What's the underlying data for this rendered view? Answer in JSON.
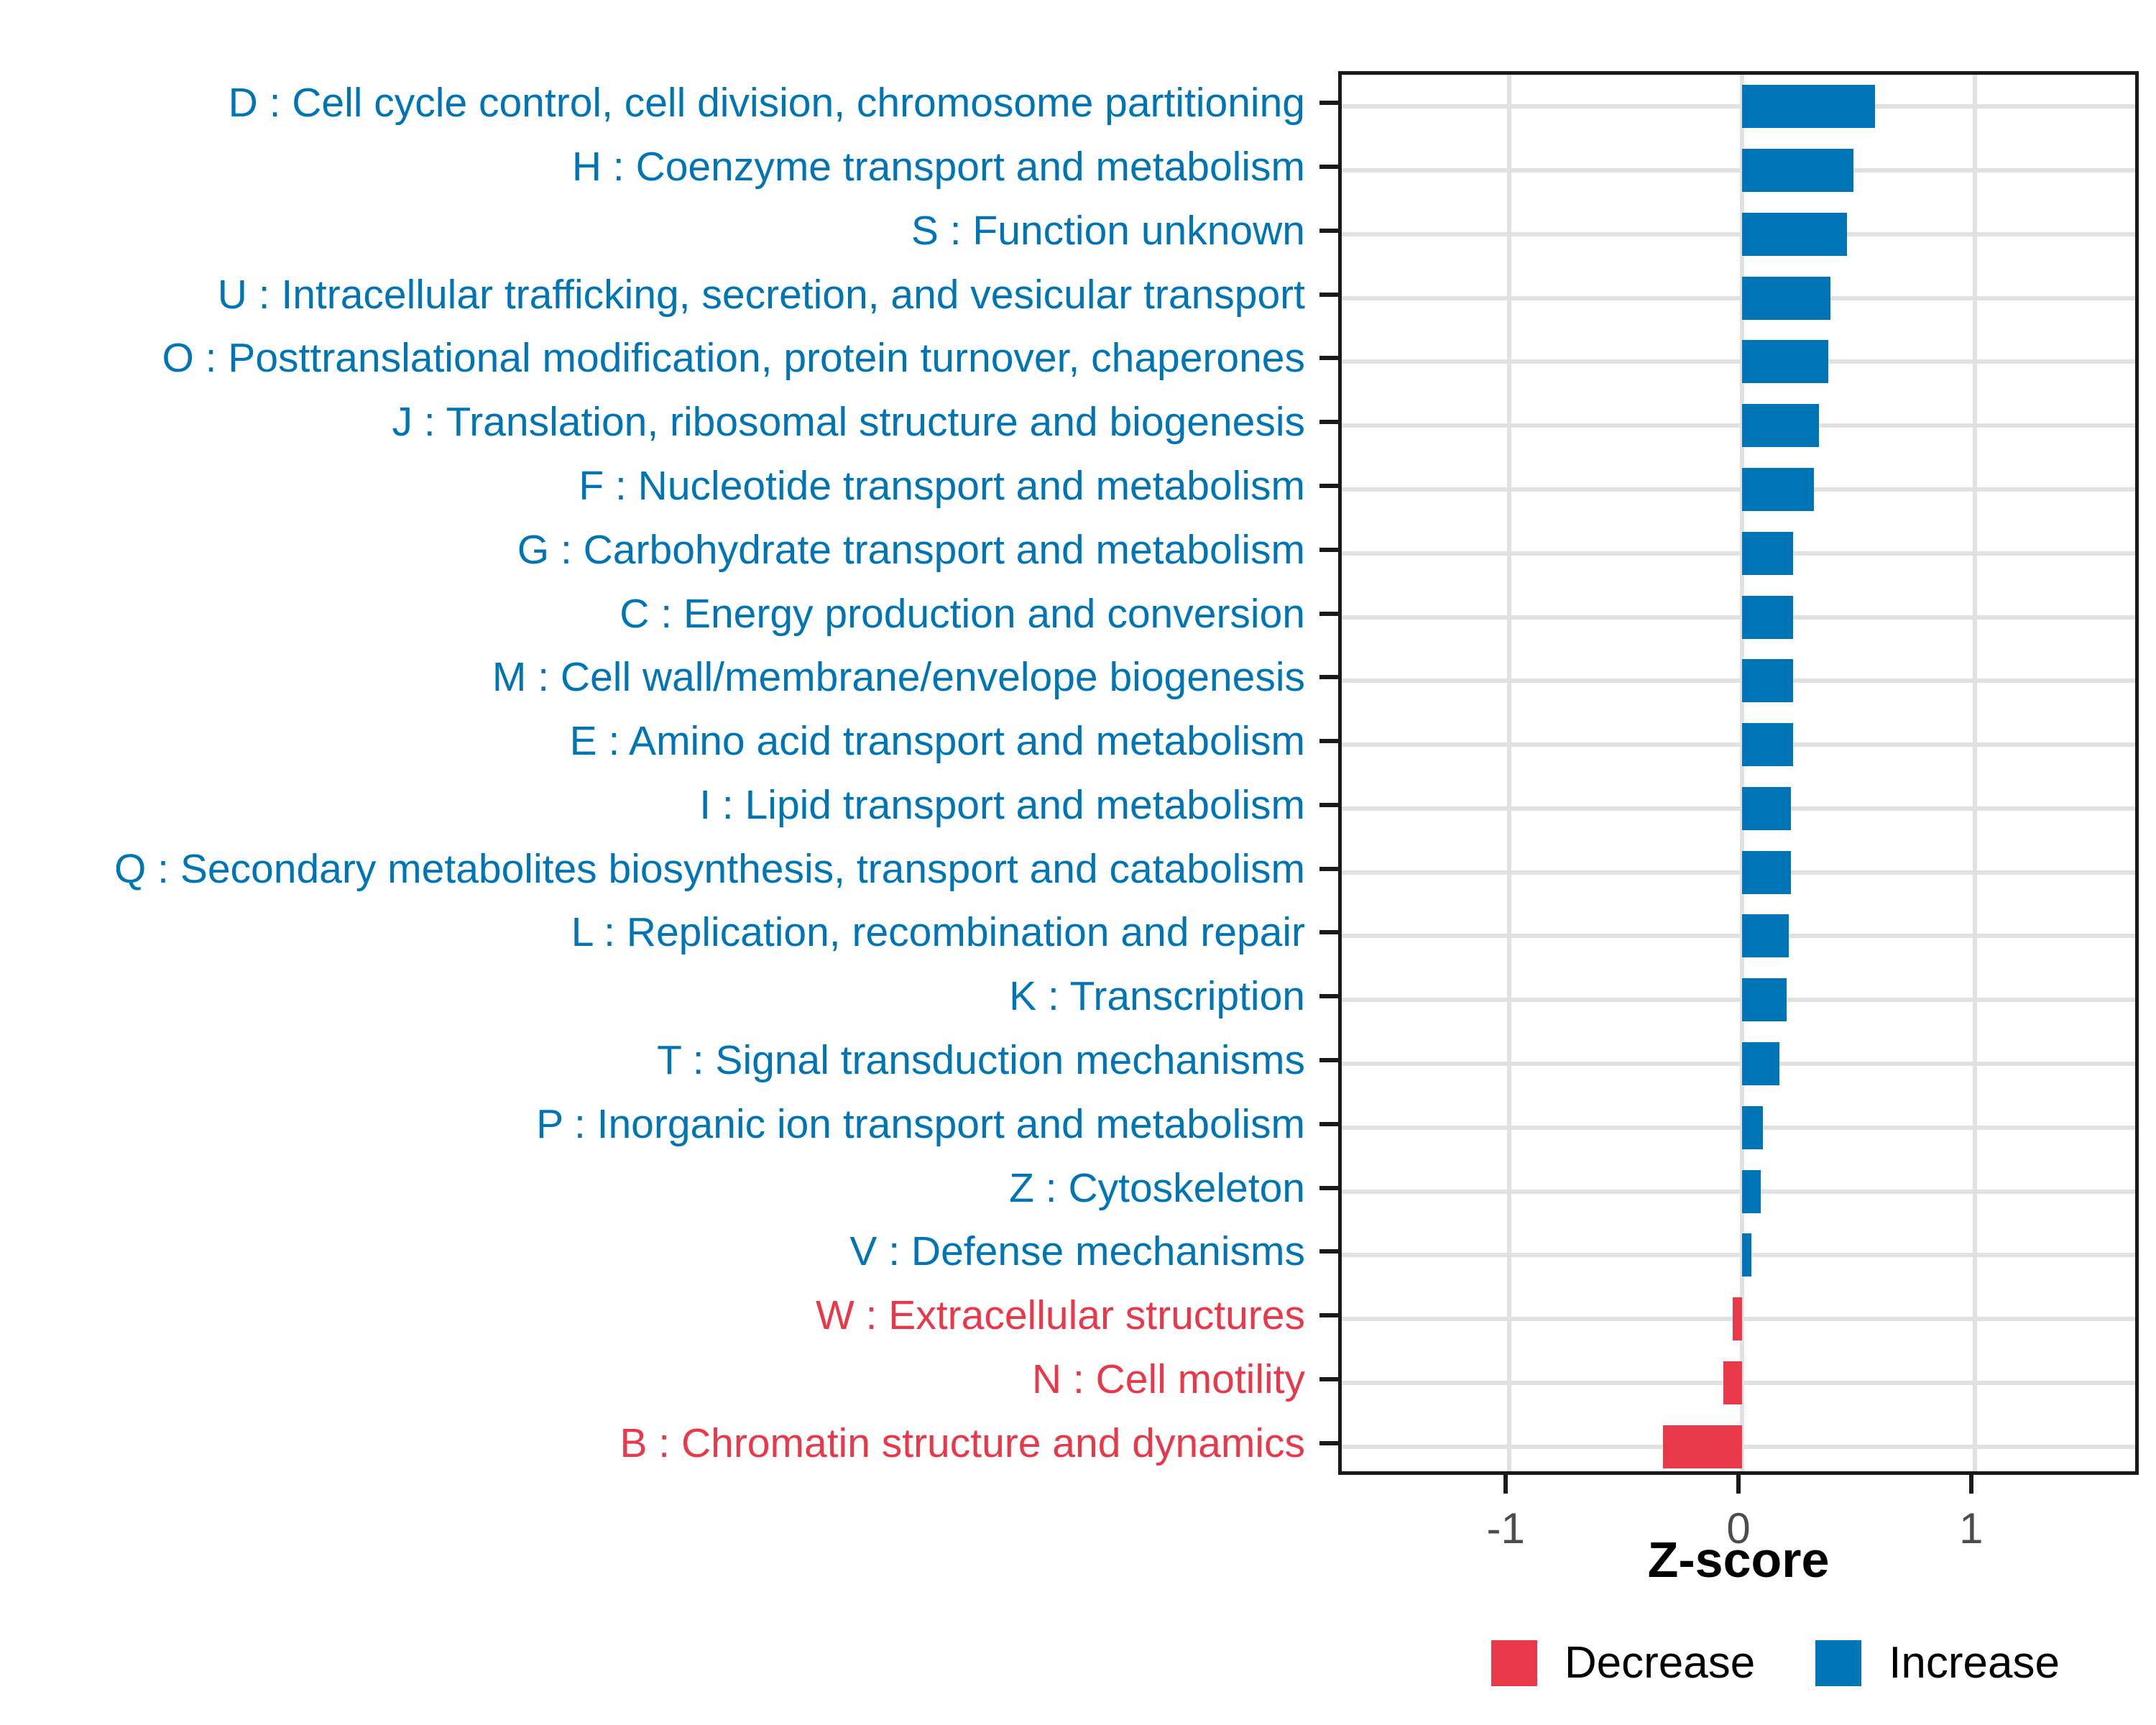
{
  "chart_data": {
    "type": "bar",
    "orientation": "horizontal",
    "title": "",
    "xlabel": "Z-score",
    "ylabel": "",
    "xlim": [
      -1.72,
      1.72
    ],
    "grid": "major-only",
    "x_ticks": [
      {
        "value": -1,
        "label": "-1"
      },
      {
        "value": 0,
        "label": "0"
      },
      {
        "value": 1,
        "label": "1"
      }
    ],
    "legend": {
      "position": "bottom-right",
      "entries": [
        {
          "label": "Decrease",
          "color": "#E8394A"
        },
        {
          "label": "Increase",
          "color": "#0075B6"
        }
      ]
    },
    "categories": [
      {
        "code": "D",
        "label": "D : Cell cycle control, cell division, chromosome partitioning",
        "value": 0.57,
        "direction": "Increase"
      },
      {
        "code": "H",
        "label": "H : Coenzyme transport and metabolism",
        "value": 0.48,
        "direction": "Increase"
      },
      {
        "code": "S",
        "label": "S : Function unknown",
        "value": 0.45,
        "direction": "Increase"
      },
      {
        "code": "U",
        "label": "U : Intracellular trafficking, secretion, and vesicular transport",
        "value": 0.38,
        "direction": "Increase"
      },
      {
        "code": "O",
        "label": "O : Posttranslational modification, protein turnover, chaperones",
        "value": 0.37,
        "direction": "Increase"
      },
      {
        "code": "J",
        "label": "J : Translation, ribosomal structure and biogenesis",
        "value": 0.33,
        "direction": "Increase"
      },
      {
        "code": "F",
        "label": "F : Nucleotide transport and metabolism",
        "value": 0.31,
        "direction": "Increase"
      },
      {
        "code": "G",
        "label": "G : Carbohydrate transport and metabolism",
        "value": 0.22,
        "direction": "Increase"
      },
      {
        "code": "C",
        "label": "C : Energy production and conversion",
        "value": 0.22,
        "direction": "Increase"
      },
      {
        "code": "M",
        "label": "M : Cell wall/membrane/envelope biogenesis",
        "value": 0.22,
        "direction": "Increase"
      },
      {
        "code": "E",
        "label": "E : Amino acid transport and metabolism",
        "value": 0.22,
        "direction": "Increase"
      },
      {
        "code": "I",
        "label": "I : Lipid transport and metabolism",
        "value": 0.21,
        "direction": "Increase"
      },
      {
        "code": "Q",
        "label": "Q : Secondary metabolites biosynthesis, transport and catabolism",
        "value": 0.21,
        "direction": "Increase"
      },
      {
        "code": "L",
        "label": "L : Replication, recombination and repair",
        "value": 0.2,
        "direction": "Increase"
      },
      {
        "code": "K",
        "label": "K : Transcription",
        "value": 0.19,
        "direction": "Increase"
      },
      {
        "code": "T",
        "label": "T : Signal transduction mechanisms",
        "value": 0.16,
        "direction": "Increase"
      },
      {
        "code": "P",
        "label": "P : Inorganic ion transport and metabolism",
        "value": 0.09,
        "direction": "Increase"
      },
      {
        "code": "Z",
        "label": "Z : Cytoskeleton",
        "value": 0.08,
        "direction": "Increase"
      },
      {
        "code": "V",
        "label": "V : Defense mechanisms",
        "value": 0.04,
        "direction": "Increase"
      },
      {
        "code": "W",
        "label": "W : Extracellular structures",
        "value": -0.04,
        "direction": "Decrease"
      },
      {
        "code": "N",
        "label": "N : Cell motility",
        "value": -0.08,
        "direction": "Decrease"
      },
      {
        "code": "B",
        "label": "B : Chromatin structure and dynamics",
        "value": -0.34,
        "direction": "Decrease"
      }
    ]
  },
  "colors": {
    "increase": "#0075B6",
    "decrease": "#E8394A",
    "gridline": "#E1E1E1",
    "axis_text": "#4D4D4D",
    "axis_line": "#1A1A1A",
    "background": "#FFFFFF"
  }
}
